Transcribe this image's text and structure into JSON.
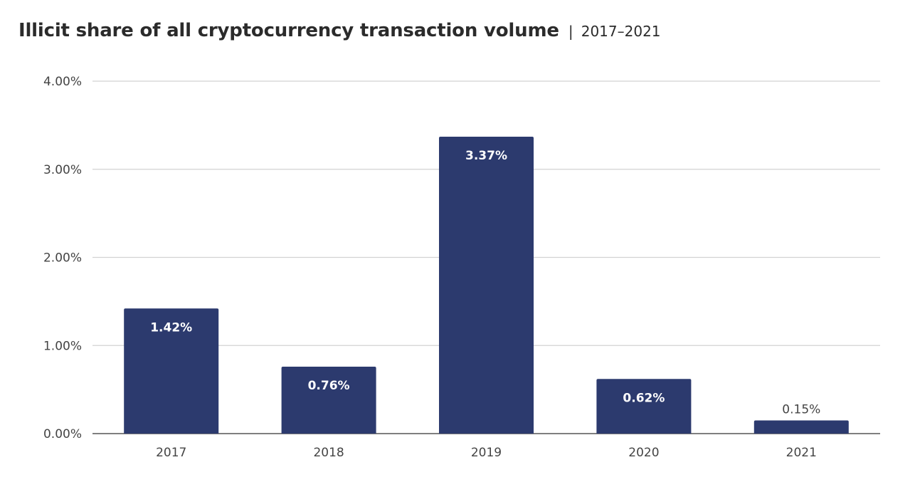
{
  "chart_data": {
    "type": "bar",
    "title": "Illicit share of all cryptocurrency transaction volume",
    "subtitle": "2017–2021",
    "title_separator": "|",
    "categories": [
      "2017",
      "2018",
      "2019",
      "2020",
      "2021"
    ],
    "values": [
      1.42,
      0.76,
      3.37,
      0.62,
      0.15
    ],
    "data_labels": [
      "1.42%",
      "0.76%",
      "3.37%",
      "0.62%",
      "0.15%"
    ],
    "ylim": [
      0,
      4
    ],
    "yticks": [
      0,
      1,
      2,
      3,
      4
    ],
    "ytick_labels": [
      "0.00%",
      "1.00%",
      "2.00%",
      "3.00%",
      "4.00%"
    ],
    "xlabel": "",
    "ylabel": "",
    "grid": true,
    "legend": "none",
    "colors": {
      "bar": "#2c3a6e",
      "grid": "#d2d2d2",
      "axis": "#555555"
    }
  }
}
